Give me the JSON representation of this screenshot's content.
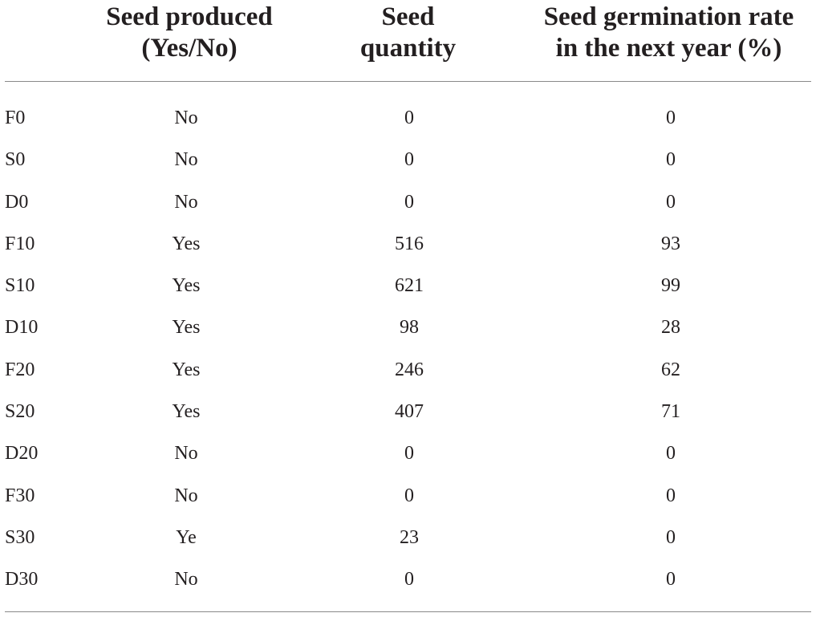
{
  "table": {
    "headers": {
      "col1": "",
      "col2": [
        "Seed produced",
        "(Yes/No)"
      ],
      "col3": [
        "Seed",
        "quantity"
      ],
      "col4": [
        "Seed germination rate",
        "in the next year (%)"
      ]
    },
    "rows": [
      {
        "label": "F0",
        "produced": "No",
        "quantity": "0",
        "rate": "0"
      },
      {
        "label": "S0",
        "produced": "No",
        "quantity": "0",
        "rate": "0"
      },
      {
        "label": "D0",
        "produced": "No",
        "quantity": "0",
        "rate": "0"
      },
      {
        "label": "F10",
        "produced": "Yes",
        "quantity": "516",
        "rate": "93"
      },
      {
        "label": "S10",
        "produced": "Yes",
        "quantity": "621",
        "rate": "99"
      },
      {
        "label": "D10",
        "produced": "Yes",
        "quantity": "98",
        "rate": "28"
      },
      {
        "label": "F20",
        "produced": "Yes",
        "quantity": "246",
        "rate": "62"
      },
      {
        "label": "S20",
        "produced": "Yes",
        "quantity": "407",
        "rate": "71"
      },
      {
        "label": "D20",
        "produced": "No",
        "quantity": "0",
        "rate": "0"
      },
      {
        "label": "F30",
        "produced": "No",
        "quantity": "0",
        "rate": "0"
      },
      {
        "label": "S30",
        "produced": "Ye",
        "quantity": "23",
        "rate": "0"
      },
      {
        "label": "D30",
        "produced": "No",
        "quantity": "0",
        "rate": "0"
      }
    ]
  }
}
